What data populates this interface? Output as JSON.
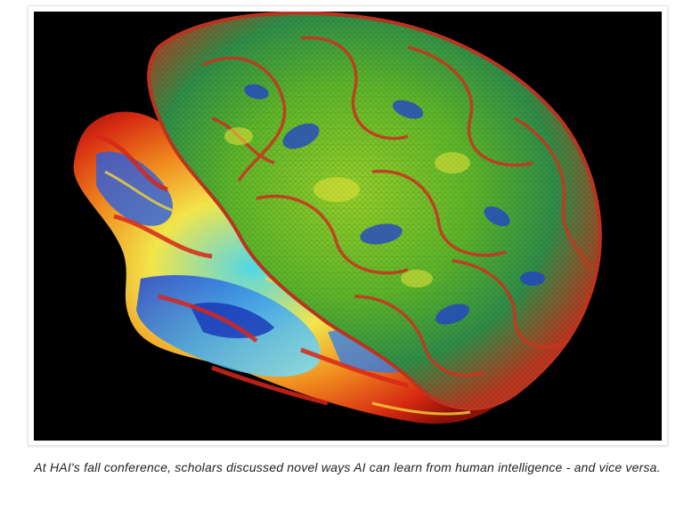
{
  "figure": {
    "image_icon": "brain-surface-visualization-icon",
    "caption": "At HAI's fall conference, scholars discussed novel ways AI can learn from human intelligence - and vice versa."
  },
  "colors": {
    "page_background": "#ffffff",
    "image_background": "#000000",
    "caption_text": "#222222",
    "card_border": "#e4e4e4"
  }
}
